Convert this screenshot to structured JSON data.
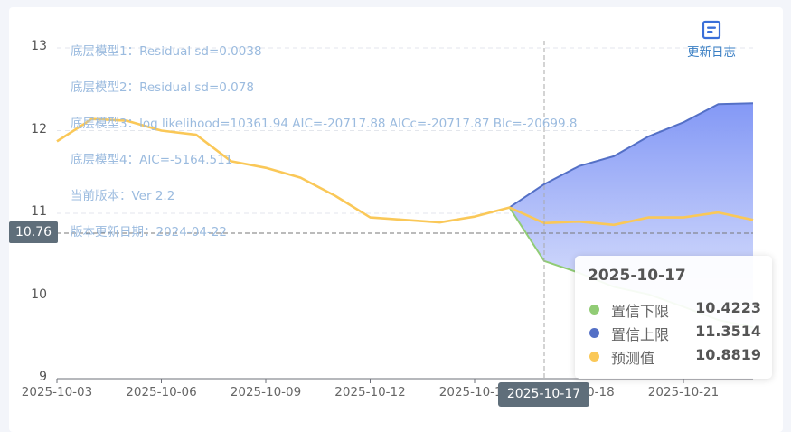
{
  "colors": {
    "lower": "#91cc75",
    "upper": "#5470c6",
    "forecast": "#fac858",
    "band_top": "#7d93f5",
    "band_bottom": "#e3e8fd",
    "info_text": "#9bbbdf",
    "badge_bg": "#5f6e7a"
  },
  "toolbar": {
    "changelog_icon": "document-list-icon",
    "changelog_label": "更新日志"
  },
  "info_lines": [
    "底层模型1：Residual sd=0.0038",
    "底层模型2：Residual sd=0.078",
    "底层模型3：log likelihood=10361.94 AIC=-20717.88 AICc=-20717.87 BIc=-20699.8",
    "底层模型4：AIC=-5164.511",
    "当前版本：Ver 2.2",
    "版本更新日期：2024-04-22"
  ],
  "axis_pointer": {
    "y_label": "10.76",
    "x_label": "2025-10-17"
  },
  "tooltip": {
    "title": "2025-10-17",
    "rows": [
      {
        "name": "置信下限",
        "value": "10.4223",
        "color": "#91cc75"
      },
      {
        "name": "置信上限",
        "value": "11.3514",
        "color": "#5470c6"
      },
      {
        "name": "预测值",
        "value": "10.8819",
        "color": "#fac858"
      }
    ]
  },
  "chart_data": {
    "type": "line",
    "title": "",
    "xlabel": "",
    "ylabel": "",
    "ylim": [
      9,
      13
    ],
    "yticks": [
      "13",
      "12",
      "11",
      "10",
      "9"
    ],
    "xticks": [
      "2025-10-03",
      "2025-10-06",
      "2025-10-09",
      "2025-10-12",
      "2025-10-15",
      "2025-10-18",
      "2025-10-21"
    ],
    "grid": true,
    "x": [
      "2025-10-03",
      "2025-10-04",
      "2025-10-05",
      "2025-10-06",
      "2025-10-07",
      "2025-10-08",
      "2025-10-09",
      "2025-10-10",
      "2025-10-11",
      "2025-10-12",
      "2025-10-13",
      "2025-10-14",
      "2025-10-15",
      "2025-10-16",
      "2025-10-17",
      "2025-10-18",
      "2025-10-19",
      "2025-10-20",
      "2025-10-21",
      "2025-10-22",
      "2025-10-23"
    ],
    "series": [
      {
        "name": "预测值",
        "color": "#fac858",
        "values": [
          11.87,
          12.14,
          12.12,
          12.0,
          11.95,
          11.63,
          11.55,
          11.43,
          11.21,
          10.95,
          10.92,
          10.89,
          10.96,
          11.07,
          10.8819,
          10.9,
          10.86,
          10.95,
          10.95,
          11.01,
          10.92
        ]
      },
      {
        "name": "置信上限",
        "color": "#5470c6",
        "values": [
          null,
          null,
          null,
          null,
          null,
          null,
          null,
          null,
          null,
          null,
          null,
          null,
          null,
          11.07,
          11.3514,
          11.57,
          11.69,
          11.93,
          12.1,
          12.32,
          12.33
        ]
      },
      {
        "name": "置信下限",
        "color": "#91cc75",
        "values": [
          null,
          null,
          null,
          null,
          null,
          null,
          null,
          null,
          null,
          null,
          null,
          null,
          null,
          11.07,
          10.4223,
          10.28,
          10.11,
          10.02,
          9.87,
          9.71,
          9.62
        ]
      }
    ],
    "annotations": {
      "horizontal_marker": 10.76,
      "vertical_marker": "2025-10-17"
    }
  }
}
